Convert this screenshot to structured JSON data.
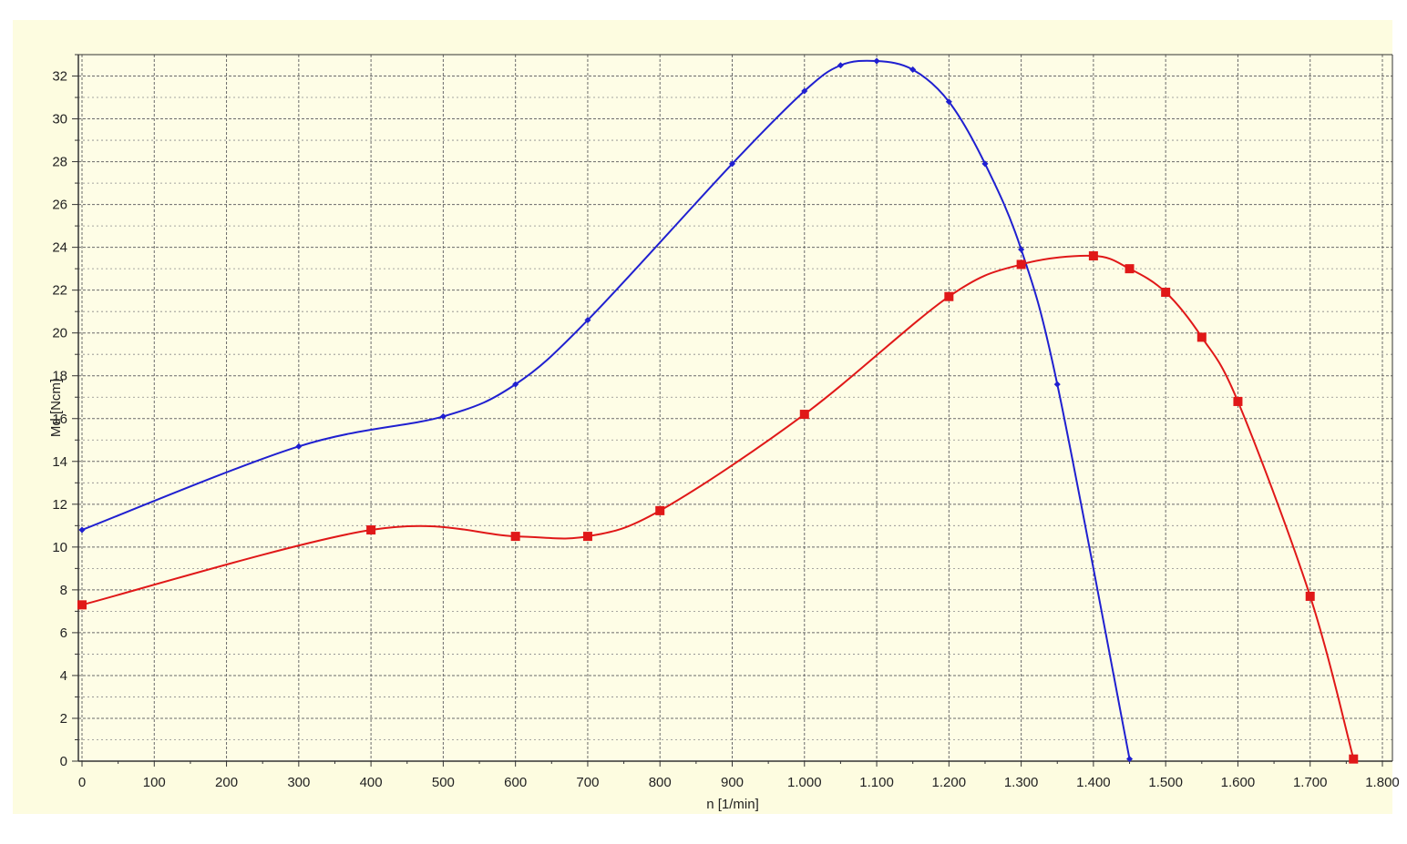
{
  "chart_data": {
    "type": "line",
    "xlabel": "n [1/min]",
    "ylabel": "Md [Ncm]",
    "xlim": [
      0,
      1800
    ],
    "ylim": [
      0,
      33
    ],
    "x_ticks": [
      0,
      100,
      200,
      300,
      400,
      500,
      600,
      700,
      800,
      900,
      1000,
      1100,
      1200,
      1300,
      1400,
      1500,
      1600,
      1700,
      1800
    ],
    "x_tick_labels": [
      "0",
      "100",
      "200",
      "300",
      "400",
      "500",
      "600",
      "700",
      "800",
      "900",
      "1.000",
      "1.100",
      "1.200",
      "1.300",
      "1.400",
      "1.500",
      "1.600",
      "1.700",
      "1.800"
    ],
    "y_ticks": [
      0,
      2,
      4,
      6,
      8,
      10,
      12,
      14,
      16,
      18,
      20,
      22,
      24,
      26,
      28,
      30,
      32
    ],
    "y_tick_labels": [
      "0",
      "2",
      "4",
      "6",
      "8",
      "10",
      "12",
      "14",
      "16",
      "18",
      "20",
      "22",
      "24",
      "26",
      "28",
      "30",
      "32"
    ],
    "grid": true,
    "legend": "none",
    "colors": {
      "outer_background": "#fdfce0",
      "plot_background": "#fefde6",
      "grid": "#6a6a6a",
      "series_blue": "#2020d0",
      "series_red": "#e01818"
    },
    "series": [
      {
        "color": "#2020d0",
        "marker": "small-diamond",
        "points": [
          [
            0,
            10.8
          ],
          [
            300,
            14.7
          ],
          [
            500,
            16.1
          ],
          [
            600,
            17.6
          ],
          [
            700,
            20.6
          ],
          [
            900,
            27.9
          ],
          [
            1000,
            31.3
          ],
          [
            1050,
            32.5
          ],
          [
            1100,
            32.7
          ],
          [
            1150,
            32.3
          ],
          [
            1200,
            30.8
          ],
          [
            1250,
            27.9
          ],
          [
            1300,
            23.9
          ],
          [
            1350,
            17.6
          ],
          [
            1450,
            0.1
          ]
        ]
      },
      {
        "color": "#e01818",
        "marker": "square",
        "points": [
          [
            0,
            7.3
          ],
          [
            400,
            10.8
          ],
          [
            600,
            10.5
          ],
          [
            700,
            10.5
          ],
          [
            800,
            11.7
          ],
          [
            1000,
            16.2
          ],
          [
            1200,
            21.7
          ],
          [
            1300,
            23.2
          ],
          [
            1400,
            23.6
          ],
          [
            1450,
            23.0
          ],
          [
            1500,
            21.9
          ],
          [
            1550,
            19.8
          ],
          [
            1600,
            16.8
          ],
          [
            1700,
            7.7
          ],
          [
            1760,
            0.1
          ]
        ]
      }
    ]
  }
}
